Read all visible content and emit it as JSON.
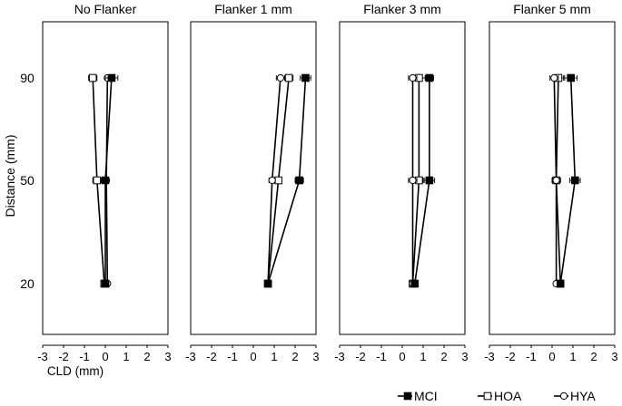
{
  "chart_data": {
    "type": "line",
    "orientation": "horizontal-values",
    "ylabel": "Distance (mm)",
    "xlabel": "CLD (mm)",
    "y_categories": [
      20,
      50,
      90
    ],
    "xlim": [
      -3,
      3
    ],
    "xticks": [
      -3,
      -2,
      -1,
      0,
      1,
      2,
      3
    ],
    "legend_position": "bottom-right",
    "series_styles": {
      "MCI": {
        "marker": "square",
        "fill": "#000000"
      },
      "HOA": {
        "marker": "square",
        "fill": "#ffffff"
      },
      "HYA": {
        "marker": "circle",
        "fill": "#ffffff"
      }
    },
    "panels": [
      {
        "title": "No Flanker",
        "series": [
          {
            "name": "MCI",
            "values": [
              0.0,
              0.0,
              0.3
            ],
            "errors": [
              0.1,
              0.1,
              0.3
            ]
          },
          {
            "name": "HOA",
            "values": [
              -0.05,
              -0.4,
              -0.6
            ],
            "errors": [
              0.1,
              0.2,
              0.2
            ]
          },
          {
            "name": "HYA",
            "values": [
              0.1,
              0.05,
              0.1
            ],
            "errors": [
              0.1,
              0.1,
              0.1
            ]
          }
        ]
      },
      {
        "title": "Flanker 1 mm",
        "series": [
          {
            "name": "MCI",
            "values": [
              0.7,
              2.2,
              2.5
            ],
            "errors": [
              0.1,
              0.2,
              0.25
            ]
          },
          {
            "name": "HOA",
            "values": [
              0.7,
              1.2,
              1.7
            ],
            "errors": [
              0.1,
              0.15,
              0.2
            ]
          },
          {
            "name": "HYA",
            "values": [
              0.7,
              0.9,
              1.3
            ],
            "errors": [
              0.1,
              0.15,
              0.2
            ]
          }
        ]
      },
      {
        "title": "Flanker 3 mm",
        "series": [
          {
            "name": "MCI",
            "values": [
              0.6,
              1.3,
              1.3
            ],
            "errors": [
              0.1,
              0.25,
              0.2
            ]
          },
          {
            "name": "HOA",
            "values": [
              0.5,
              0.8,
              0.8
            ],
            "errors": [
              0.1,
              0.2,
              0.3
            ]
          },
          {
            "name": "HYA",
            "values": [
              0.5,
              0.5,
              0.5
            ],
            "errors": [
              0.1,
              0.2,
              0.2
            ]
          }
        ]
      },
      {
        "title": "Flanker 5 mm",
        "series": [
          {
            "name": "MCI",
            "values": [
              0.4,
              1.1,
              0.9
            ],
            "errors": [
              0.1,
              0.25,
              0.3
            ]
          },
          {
            "name": "HOA",
            "values": [
              0.4,
              0.2,
              0.3
            ],
            "errors": [
              0.1,
              0.2,
              0.25
            ]
          },
          {
            "name": "HYA",
            "values": [
              0.2,
              0.2,
              0.1
            ],
            "errors": [
              0.1,
              0.2,
              0.2
            ]
          }
        ]
      }
    ]
  }
}
